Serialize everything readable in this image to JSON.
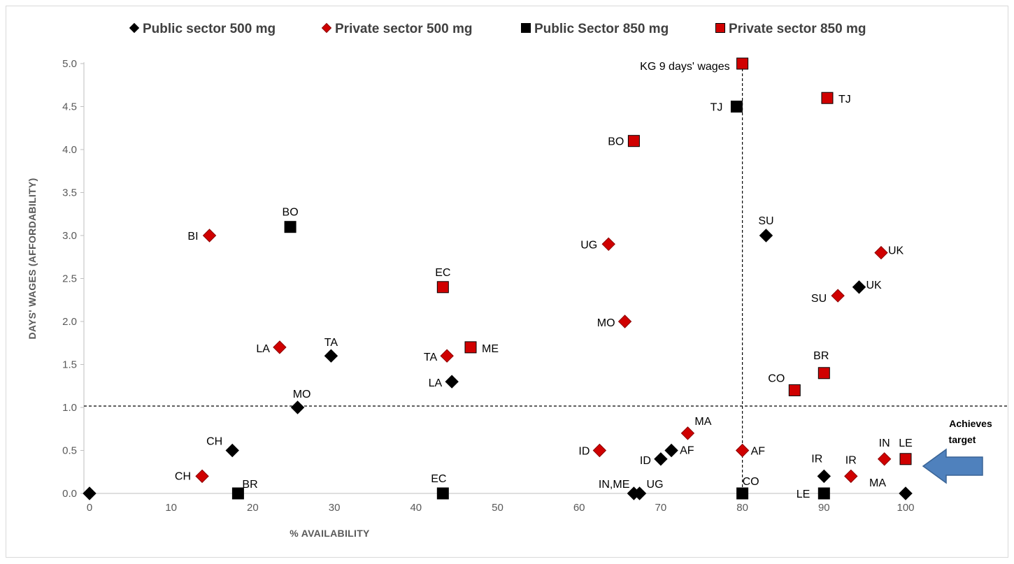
{
  "chart_data": {
    "type": "scatter",
    "title": "",
    "xlabel": "% AVAILABILITY",
    "ylabel": "DAYS' WAGES (AFFORDABILITY)",
    "xlim": [
      0,
      100
    ],
    "ylim": [
      0,
      5
    ],
    "x_ticks": [
      "0",
      "10",
      "20",
      "30",
      "40",
      "50",
      "60",
      "70",
      "80",
      "90",
      "100"
    ],
    "y_ticks": [
      "0.0",
      "0.5",
      "1.0",
      "1.5",
      "2.0",
      "2.5",
      "3.0",
      "3.5",
      "4.0",
      "4.5",
      "5.0"
    ],
    "grid": false,
    "legend_position": "top",
    "reference_lines": [
      {
        "axis": "y",
        "value": 1.0,
        "style": "dashed"
      },
      {
        "axis": "x",
        "value": 80,
        "style": "dashed"
      }
    ],
    "annotations": [
      {
        "text": "Achieves target",
        "lines": [
          "Achieves",
          "target"
        ],
        "arrow": "left"
      }
    ],
    "series": [
      {
        "name": "Public sector 500 mg",
        "marker": "diamond",
        "color": "#000000",
        "points": [
          {
            "x": 0,
            "y": 0,
            "label": ""
          },
          {
            "x": 17.5,
            "y": 0.5,
            "label": "CH"
          },
          {
            "x": 25.5,
            "y": 1.0,
            "label": "MO"
          },
          {
            "x": 29.6,
            "y": 1.6,
            "label": "TA"
          },
          {
            "x": 44.4,
            "y": 1.3,
            "label": "LA"
          },
          {
            "x": 66.7,
            "y": 0,
            "label": "IN,ME"
          },
          {
            "x": 67.4,
            "y": 0,
            "label": "UG"
          },
          {
            "x": 70.0,
            "y": 0.4,
            "label": "ID"
          },
          {
            "x": 71.3,
            "y": 0.5,
            "label": "AF"
          },
          {
            "x": 82.9,
            "y": 3.0,
            "label": "SU"
          },
          {
            "x": 90.0,
            "y": 0.2,
            "label": "IR"
          },
          {
            "x": 94.3,
            "y": 2.4,
            "label": "UK"
          },
          {
            "x": 100,
            "y": 0,
            "label": "MA"
          }
        ]
      },
      {
        "name": "Private sector 500 mg",
        "marker": "diamond",
        "color": "#d00000",
        "points": [
          {
            "x": 13.8,
            "y": 0.2,
            "label": "CH"
          },
          {
            "x": 14.7,
            "y": 3.0,
            "label": "BI"
          },
          {
            "x": 23.3,
            "y": 1.7,
            "label": "LA"
          },
          {
            "x": 43.8,
            "y": 1.6,
            "label": "TA"
          },
          {
            "x": 62.5,
            "y": 0.5,
            "label": "ID"
          },
          {
            "x": 63.6,
            "y": 2.9,
            "label": "UG"
          },
          {
            "x": 65.6,
            "y": 2.0,
            "label": "MO"
          },
          {
            "x": 73.3,
            "y": 0.7,
            "label": "MA"
          },
          {
            "x": 80.0,
            "y": 0.5,
            "label": "AF"
          },
          {
            "x": 91.7,
            "y": 2.3,
            "label": "SU"
          },
          {
            "x": 93.3,
            "y": 0.2,
            "label": "IR"
          },
          {
            "x": 97.0,
            "y": 2.8,
            "label": "UK"
          },
          {
            "x": 97.4,
            "y": 0.4,
            "label": "IN"
          }
        ]
      },
      {
        "name": "Public Sector 850 mg",
        "marker": "square",
        "color": "#000000",
        "points": [
          {
            "x": 18.2,
            "y": 0,
            "label": "BR"
          },
          {
            "x": 24.6,
            "y": 3.1,
            "label": "BO"
          },
          {
            "x": 43.3,
            "y": 0,
            "label": "EC"
          },
          {
            "x": 79.3,
            "y": 4.5,
            "label": "TJ"
          },
          {
            "x": 80.0,
            "y": 0,
            "label": "CO"
          },
          {
            "x": 90.0,
            "y": 0,
            "label": "LE"
          }
        ]
      },
      {
        "name": "Private sector 850 mg",
        "marker": "square",
        "color": "#d00000",
        "points": [
          {
            "x": 43.3,
            "y": 2.4,
            "label": "EC"
          },
          {
            "x": 46.7,
            "y": 1.7,
            "label": "ME"
          },
          {
            "x": 66.7,
            "y": 4.1,
            "label": "BO"
          },
          {
            "x": 80.0,
            "y": 5.0,
            "label": "KG 9 days' wages"
          },
          {
            "x": 86.4,
            "y": 1.2,
            "label": "CO"
          },
          {
            "x": 90.0,
            "y": 1.4,
            "label": "BR"
          },
          {
            "x": 90.4,
            "y": 4.6,
            "label": "TJ"
          },
          {
            "x": 100,
            "y": 0.4,
            "label": "LE"
          }
        ]
      }
    ]
  }
}
